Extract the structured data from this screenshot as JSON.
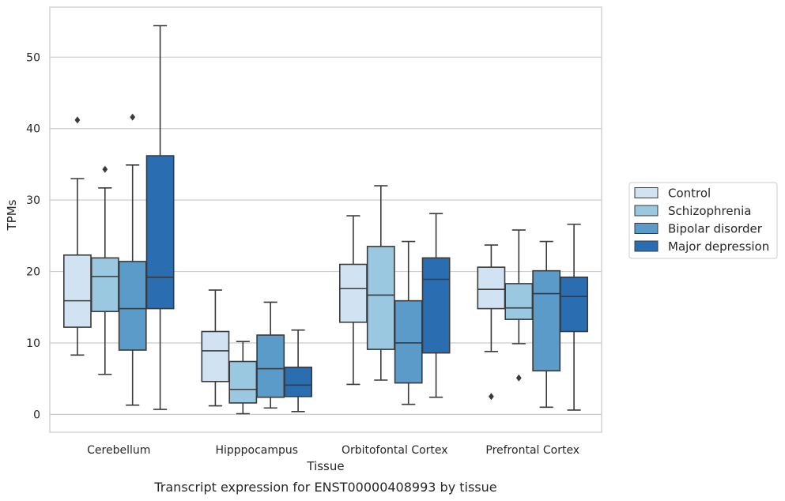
{
  "chart_data": {
    "type": "box",
    "caption": "Transcript expression for ENST00000408993 by tissue",
    "xlabel": "Tissue",
    "ylabel": "TPMs",
    "ylim": [
      -2.5,
      57
    ],
    "yticks": [
      0,
      10,
      20,
      30,
      40,
      50
    ],
    "grid": "horizontal",
    "legend_position": "right",
    "categories": [
      "Cerebellum",
      "Hipppocampus",
      "Orbitofontal Cortex",
      "Prefrontal Cortex"
    ],
    "series": [
      {
        "name": "Control",
        "color": "#d1e2f2",
        "boxes": [
          {
            "min": 8.3,
            "q1": 12.2,
            "median": 15.9,
            "q3": 22.3,
            "max": 33.0,
            "outliers": [
              41.2
            ]
          },
          {
            "min": 1.2,
            "q1": 4.6,
            "median": 8.9,
            "q3": 11.6,
            "max": 17.4,
            "outliers": []
          },
          {
            "min": 4.2,
            "q1": 12.9,
            "median": 17.6,
            "q3": 21.0,
            "max": 27.8,
            "outliers": []
          },
          {
            "min": 8.8,
            "q1": 14.8,
            "median": 17.5,
            "q3": 20.6,
            "max": 23.7,
            "outliers": [
              2.5
            ]
          }
        ]
      },
      {
        "name": "Schizophrenia",
        "color": "#9ac8e0",
        "boxes": [
          {
            "min": 5.6,
            "q1": 14.4,
            "median": 19.3,
            "q3": 21.9,
            "max": 31.7,
            "outliers": [
              34.3
            ]
          },
          {
            "min": 0.1,
            "q1": 1.6,
            "median": 3.5,
            "q3": 7.4,
            "max": 10.2,
            "outliers": []
          },
          {
            "min": 4.8,
            "q1": 9.1,
            "median": 16.7,
            "q3": 23.5,
            "max": 32.0,
            "outliers": []
          },
          {
            "min": 9.9,
            "q1": 13.3,
            "median": 14.9,
            "q3": 18.3,
            "max": 25.8,
            "outliers": [
              5.1
            ]
          }
        ]
      },
      {
        "name": "Bipolar disorder",
        "color": "#5a9bc9",
        "boxes": [
          {
            "min": 1.3,
            "q1": 9.0,
            "median": 14.8,
            "q3": 21.4,
            "max": 34.9,
            "outliers": [
              41.6
            ]
          },
          {
            "min": 0.9,
            "q1": 2.4,
            "median": 6.4,
            "q3": 11.1,
            "max": 15.7,
            "outliers": []
          },
          {
            "min": 1.4,
            "q1": 4.4,
            "median": 10.0,
            "q3": 15.9,
            "max": 24.2,
            "outliers": []
          },
          {
            "min": 1.0,
            "q1": 6.1,
            "median": 16.9,
            "q3": 20.1,
            "max": 24.2,
            "outliers": []
          }
        ]
      },
      {
        "name": "Major depression",
        "color": "#2a6db0",
        "boxes": [
          {
            "min": 0.7,
            "q1": 14.8,
            "median": 19.2,
            "q3": 36.2,
            "max": 54.4,
            "outliers": []
          },
          {
            "min": 0.4,
            "q1": 2.5,
            "median": 4.1,
            "q3": 6.6,
            "max": 11.8,
            "outliers": []
          },
          {
            "min": 2.4,
            "q1": 8.6,
            "median": 18.9,
            "q3": 21.9,
            "max": 28.1,
            "outliers": []
          },
          {
            "min": 0.6,
            "q1": 11.6,
            "median": 16.5,
            "q3": 19.2,
            "max": 26.6,
            "outliers": []
          }
        ]
      }
    ]
  }
}
